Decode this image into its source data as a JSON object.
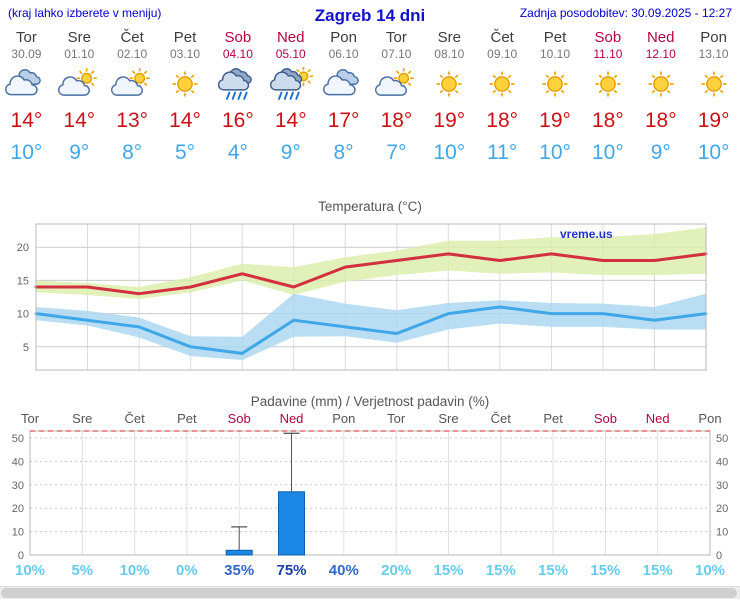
{
  "header": {
    "hint": "(kraj lahko izberete v meniju)",
    "title": "Zagreb 14 dni",
    "updated": "Zadnja posodobitev: 30.09.2025 - 12:27"
  },
  "watermark": "vreme.us",
  "colors": {
    "tmax": "#cc1016",
    "tmin": "#3fa7e8",
    "weekend": "#b3043c",
    "weekday": "#3c3c3c",
    "band_max": "#dcedaa",
    "band_min": "#a9d7f1",
    "bar": "#1c87e5",
    "prob_low": "#66ccee",
    "prob_mid": "#3366cc",
    "prob_high": "#1a3faa"
  },
  "days": [
    {
      "name": "Tor",
      "date": "30.09",
      "weekend": false,
      "icon": "clouds",
      "tmax": 14,
      "tmin": 10
    },
    {
      "name": "Sre",
      "date": "01.10",
      "weekend": false,
      "icon": "sun-cloud",
      "tmax": 14,
      "tmin": 9
    },
    {
      "name": "Čet",
      "date": "02.10",
      "weekend": false,
      "icon": "sun-cloud",
      "tmax": 13,
      "tmin": 8
    },
    {
      "name": "Pet",
      "date": "03.10",
      "weekend": false,
      "icon": "sun",
      "tmax": 14,
      "tmin": 5
    },
    {
      "name": "Sob",
      "date": "04.10",
      "weekend": true,
      "icon": "rain",
      "tmax": 16,
      "tmin": 4
    },
    {
      "name": "Ned",
      "date": "05.10",
      "weekend": true,
      "icon": "sun-rain",
      "tmax": 14,
      "tmin": 9
    },
    {
      "name": "Pon",
      "date": "06.10",
      "weekend": false,
      "icon": "clouds",
      "tmax": 17,
      "tmin": 8
    },
    {
      "name": "Tor",
      "date": "07.10",
      "weekend": false,
      "icon": "sun-cloud",
      "tmax": 18,
      "tmin": 7
    },
    {
      "name": "Sre",
      "date": "08.10",
      "weekend": false,
      "icon": "sun",
      "tmax": 19,
      "tmin": 10
    },
    {
      "name": "Čet",
      "date": "09.10",
      "weekend": false,
      "icon": "sun",
      "tmax": 18,
      "tmin": 11
    },
    {
      "name": "Pet",
      "date": "10.10",
      "weekend": false,
      "icon": "sun",
      "tmax": 19,
      "tmin": 10
    },
    {
      "name": "Sob",
      "date": "11.10",
      "weekend": true,
      "icon": "sun",
      "tmax": 18,
      "tmin": 10
    },
    {
      "name": "Ned",
      "date": "12.10",
      "weekend": true,
      "icon": "sun",
      "tmax": 18,
      "tmin": 9
    },
    {
      "name": "Pon",
      "date": "13.10",
      "weekend": false,
      "icon": "sun",
      "tmax": 19,
      "tmin": 10
    }
  ],
  "chart_data": [
    {
      "type": "line",
      "title": "Temperatura (°C)",
      "categories": [
        "Tor 30.09",
        "Sre 01.10",
        "Čet 02.10",
        "Pet 03.10",
        "Sob 04.10",
        "Ned 05.10",
        "Pon 06.10",
        "Tor 07.10",
        "Sre 08.10",
        "Čet 09.10",
        "Pet 10.10",
        "Sob 11.10",
        "Ned 12.10",
        "Pon 13.10"
      ],
      "ylim": [
        1.5,
        23.5
      ],
      "yticks": [
        5,
        10,
        15,
        20
      ],
      "grid": true,
      "legend": "none",
      "series": [
        {
          "name": "max-temperature",
          "color": "#d22f3f",
          "values": [
            14,
            14,
            13,
            14,
            16,
            14,
            17,
            18,
            19,
            18,
            19,
            18,
            18,
            19
          ]
        },
        {
          "name": "min-temperature",
          "color": "#3fa7e8",
          "values": [
            10,
            9,
            8,
            5,
            4,
            9,
            8,
            7,
            10,
            11,
            10,
            10,
            9,
            10
          ]
        }
      ],
      "bands": [
        {
          "name": "max-temperature-range",
          "color": "#dcedaa",
          "upper": [
            15,
            14.6,
            14,
            15.5,
            17.5,
            17,
            18.5,
            19.5,
            21,
            21,
            21.5,
            21.5,
            22,
            23
          ],
          "lower": [
            13.2,
            12.8,
            12.2,
            13.2,
            15,
            12.8,
            14.8,
            15.8,
            16.5,
            16,
            16.2,
            15.8,
            15.8,
            16
          ]
        },
        {
          "name": "min-temperature-range",
          "color": "#a9d7f1",
          "upper": [
            11,
            10.4,
            9.4,
            6.6,
            6.5,
            13,
            11.5,
            10.5,
            11.6,
            12,
            11.6,
            11.5,
            11,
            13
          ],
          "lower": [
            9,
            8.2,
            6.4,
            3.6,
            3,
            6.5,
            6.6,
            5.6,
            7.6,
            8.5,
            8,
            8,
            7.6,
            7.6
          ]
        }
      ]
    },
    {
      "type": "bar",
      "title": "Padavine (mm) / Verjetnost padavin (%)",
      "categories": [
        "Tor",
        "Sre",
        "Čet",
        "Pet",
        "Sob",
        "Ned",
        "Pon",
        "Tor",
        "Sre",
        "Čet",
        "Pet",
        "Sob",
        "Ned",
        "Pon"
      ],
      "ylim": [
        0,
        53
      ],
      "yticks": [
        0,
        10,
        20,
        30,
        40,
        50
      ],
      "bar_color": "#1c87e5",
      "precip_mm": [
        0,
        0,
        0,
        0,
        2,
        27,
        0,
        0,
        0,
        0,
        0,
        0,
        0,
        0
      ],
      "precip_max_mm": [
        0,
        0,
        0,
        0,
        12,
        52,
        0,
        0,
        0,
        0,
        0,
        0,
        0,
        0
      ],
      "probability_pct": [
        10,
        5,
        10,
        0,
        35,
        75,
        40,
        20,
        15,
        15,
        15,
        15,
        15,
        10
      ]
    }
  ]
}
